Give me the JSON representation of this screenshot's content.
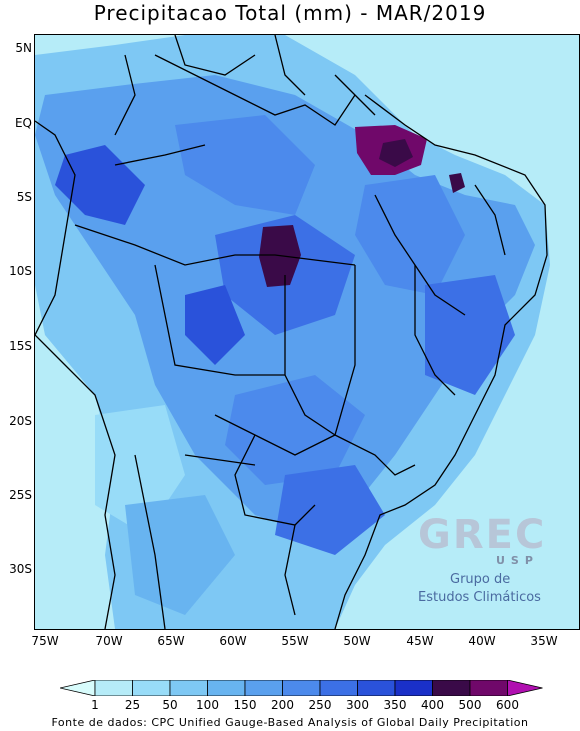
{
  "title": "Precipitacao Total (mm) - MAR/2019",
  "lat_labels": [
    "5N",
    "EQ",
    "5S",
    "10S",
    "15S",
    "20S",
    "25S",
    "30S"
  ],
  "lon_labels": [
    "75W",
    "70W",
    "65W",
    "60W",
    "55W",
    "50W",
    "45W",
    "40W",
    "35W"
  ],
  "colorbar": {
    "labels": [
      "1",
      "25",
      "50",
      "100",
      "150",
      "200",
      "250",
      "300",
      "350",
      "400",
      "500",
      "600"
    ],
    "colors": [
      "#d8fcfc",
      "#b6ecf8",
      "#98dcf8",
      "#7ec8f4",
      "#68b4f0",
      "#5aa0ee",
      "#4c8aec",
      "#3c70e6",
      "#2a52da",
      "#1a30c8",
      "#3a0a48",
      "#70086a",
      "#b010b0"
    ]
  },
  "logo": {
    "main": "GREC",
    "sub": "USP",
    "line1": "Grupo de",
    "line2": "Estudos Climáticos"
  },
  "source": "Fonte de dados: CPC Unified Gauge-Based Analysis of Global Daily Precipitation"
}
